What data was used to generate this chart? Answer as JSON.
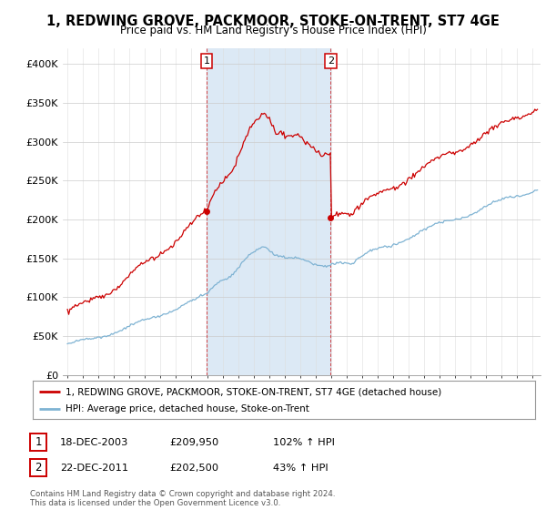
{
  "title": "1, REDWING GROVE, PACKMOOR, STOKE-ON-TRENT, ST7 4GE",
  "subtitle": "Price paid vs. HM Land Registry's House Price Index (HPI)",
  "ylim": [
    0,
    420000
  ],
  "yticks": [
    0,
    50000,
    100000,
    150000,
    200000,
    250000,
    300000,
    350000,
    400000
  ],
  "ytick_labels": [
    "£0",
    "£50K",
    "£100K",
    "£150K",
    "£200K",
    "£250K",
    "£300K",
    "£350K",
    "£400K"
  ],
  "xlim_start": 1994.7,
  "xlim_end": 2025.5,
  "sale1_date": 2003.96,
  "sale1_price": 209950,
  "sale2_date": 2011.97,
  "sale2_price": 202500,
  "shade_color": "#dce9f5",
  "sale_line_color": "#cc0000",
  "hpi_line_color": "#7fb3d3",
  "legend_entries": [
    "1, REDWING GROVE, PACKMOOR, STOKE-ON-TRENT, ST7 4GE (detached house)",
    "HPI: Average price, detached house, Stoke-on-Trent"
  ],
  "table_rows": [
    {
      "label": "1",
      "date": "18-DEC-2003",
      "price": "£209,950",
      "hpi": "102% ↑ HPI"
    },
    {
      "label": "2",
      "date": "22-DEC-2011",
      "price": "£202,500",
      "hpi": "43% ↑ HPI"
    }
  ],
  "footer": "Contains HM Land Registry data © Crown copyright and database right 2024.\nThis data is licensed under the Open Government Licence v3.0.",
  "background_color": "#ffffff"
}
